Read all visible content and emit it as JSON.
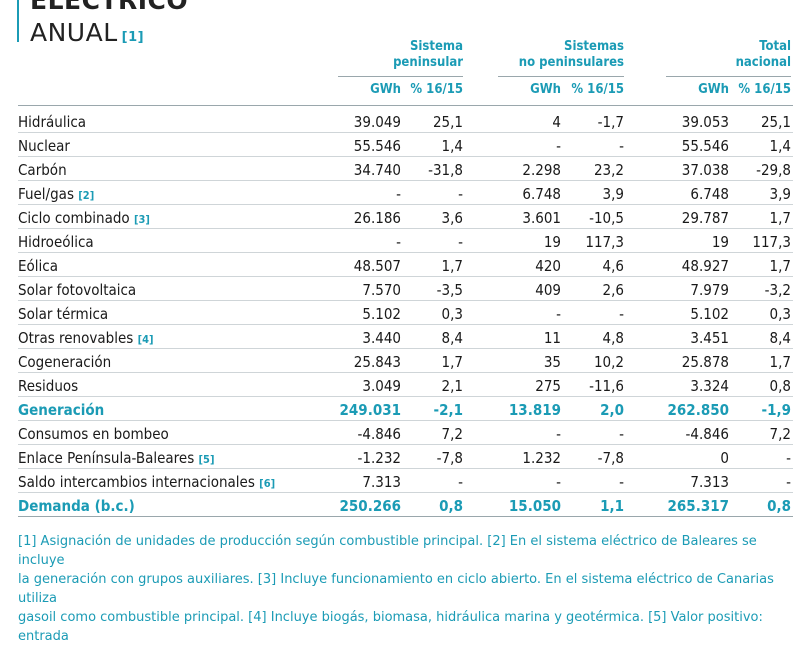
{
  "title": {
    "line1": "ELÉCTRICO",
    "line2": "ANUAL",
    "note": "[1]"
  },
  "groups": [
    {
      "line1": "Sistema",
      "line2": "peninsular"
    },
    {
      "line1": "Sistemas",
      "line2": "no peninsulares"
    },
    {
      "line1": "Total",
      "line2": "nacional"
    }
  ],
  "subheaders": {
    "gwh": "GWh",
    "pct": "% 16/15"
  },
  "rows": [
    {
      "label": "Hidráulica",
      "note": "",
      "values": [
        "39.049",
        "25,1",
        "4",
        "-1,7",
        "39.053",
        "25,1"
      ]
    },
    {
      "label": "Nuclear",
      "note": "",
      "values": [
        "55.546",
        "1,4",
        "-",
        "-",
        "55.546",
        "1,4"
      ]
    },
    {
      "label": "Carbón",
      "note": "",
      "values": [
        "34.740",
        "-31,8",
        "2.298",
        "23,2",
        "37.038",
        "-29,8"
      ]
    },
    {
      "label": "Fuel/gas",
      "note": "[2]",
      "values": [
        "-",
        "-",
        "6.748",
        "3,9",
        "6.748",
        "3,9"
      ]
    },
    {
      "label": "Ciclo combinado",
      "note": "[3]",
      "values": [
        "26.186",
        "3,6",
        "3.601",
        "-10,5",
        "29.787",
        "1,7"
      ]
    },
    {
      "label": "Hidroeólica",
      "note": "",
      "values": [
        "-",
        "-",
        "19",
        "117,3",
        "19",
        "117,3"
      ]
    },
    {
      "label": "Eólica",
      "note": "",
      "values": [
        "48.507",
        "1,7",
        "420",
        "4,6",
        "48.927",
        "1,7"
      ]
    },
    {
      "label": "Solar fotovoltaica",
      "note": "",
      "values": [
        "7.570",
        "-3,5",
        "409",
        "2,6",
        "7.979",
        "-3,2"
      ]
    },
    {
      "label": "Solar térmica",
      "note": "",
      "values": [
        "5.102",
        "0,3",
        "-",
        "-",
        "5.102",
        "0,3"
      ]
    },
    {
      "label": "Otras renovables",
      "note": "[4]",
      "values": [
        "3.440",
        "8,4",
        "11",
        "4,8",
        "3.451",
        "8,4"
      ]
    },
    {
      "label": "Cogeneración",
      "note": "",
      "values": [
        "25.843",
        "1,7",
        "35",
        "10,2",
        "25.878",
        "1,7"
      ]
    },
    {
      "label": "Residuos",
      "note": "",
      "values": [
        "3.049",
        "2,1",
        "275",
        "-11,6",
        "3.324",
        "0,8"
      ]
    },
    {
      "label": "Generación",
      "note": "",
      "highlight": true,
      "values": [
        "249.031",
        "-2,1",
        "13.819",
        "2,0",
        "262.850",
        "-1,9"
      ]
    },
    {
      "label": "Consumos en bombeo",
      "note": "",
      "values": [
        "-4.846",
        "7,2",
        "-",
        "-",
        "-4.846",
        "7,2"
      ]
    },
    {
      "label": "Enlace Península-Baleares",
      "note": "[5]",
      "values": [
        "-1.232",
        "-7,8",
        "1.232",
        "-7,8",
        "0",
        "-"
      ]
    },
    {
      "label": "Saldo intercambios internacionales",
      "note": "[6]",
      "values": [
        "7.313",
        "-",
        "-",
        "-",
        "7.313",
        "-"
      ]
    },
    {
      "label": "Demanda (b.c.)",
      "note": "",
      "highlight": true,
      "values": [
        "250.266",
        "0,8",
        "15.050",
        "1,1",
        "265.317",
        "0,8"
      ]
    }
  ],
  "footer": {
    "line1": "[1] Asignación de unidades de producción según combustible principal. [2] En el sistema eléctrico de Baleares se incluye",
    "line2": "la generación con grupos auxiliares. [3] Incluye funcionamiento en ciclo abierto. En el sistema eléctrico de Canarias utiliza",
    "line3": "gasoil como combustible principal. [4] Incluye biogás, biomasa, hidráulica marina y geotérmica. [5] Valor positivo: entrada"
  }
}
